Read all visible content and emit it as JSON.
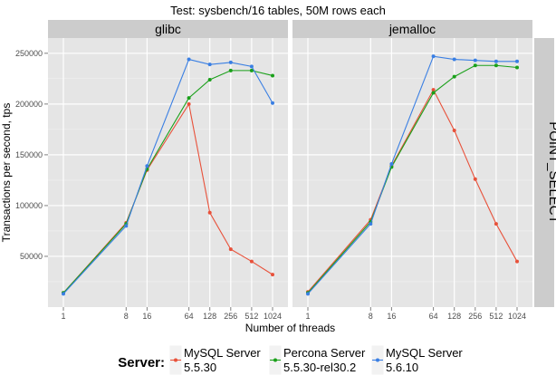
{
  "chart_data": {
    "type": "line",
    "title": "Test: sysbench/16 tables, 50M rows each",
    "xlabel": "Number of threads",
    "ylabel": "Transactions per second, tps",
    "x_scale": "log2",
    "x": [
      "1",
      "8",
      "16",
      "64",
      "128",
      "256",
      "512",
      "1024"
    ],
    "yticks": [
      "50000",
      "100000",
      "150000",
      "200000",
      "250000"
    ],
    "ylim": [
      0,
      265000
    ],
    "grid": true,
    "facet_row_label": "POINT_SELECT",
    "legend": {
      "title": "Server:",
      "position": "bottom",
      "entries": [
        {
          "line1": "MySQL Server",
          "line2": "5.5.30",
          "color": "#e8513a"
        },
        {
          "line1": "Percona Server",
          "line2": "5.5.30-rel30.2",
          "color": "#1aa01a"
        },
        {
          "line1": "MySQL Server",
          "line2": "5.6.10",
          "color": "#3a7fe3"
        }
      ]
    },
    "panels": [
      {
        "title": "glibc",
        "series": [
          {
            "values": [
              14000,
              83000,
              135000,
              200000,
              93000,
              57000,
              45000,
              32000
            ]
          },
          {
            "values": [
              14000,
              82000,
              136000,
              206000,
              224000,
              233000,
              233000,
              228000
            ]
          },
          {
            "values": [
              13000,
              80000,
              139000,
              244000,
              239000,
              241000,
              237000,
              201000
            ]
          }
        ]
      },
      {
        "title": "jemalloc",
        "series": [
          {
            "values": [
              15000,
              86000,
              139000,
              214000,
              174000,
              126000,
              82000,
              45000
            ]
          },
          {
            "values": [
              14000,
              84000,
              138000,
              211000,
              227000,
              238000,
              238000,
              236000
            ]
          },
          {
            "values": [
              13000,
              82000,
              141000,
              247000,
              244000,
              243000,
              242000,
              242000
            ]
          }
        ]
      }
    ]
  }
}
